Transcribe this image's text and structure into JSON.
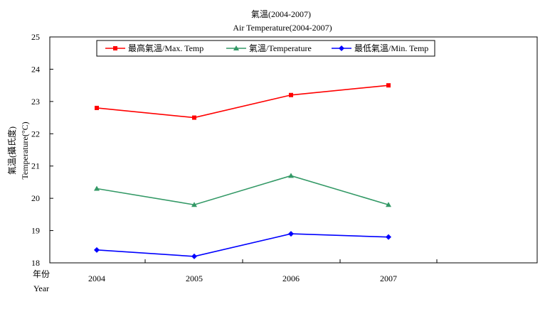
{
  "chart_data": {
    "type": "line",
    "title": "氣溫(2004-2007)",
    "subtitle": "Air Temperature(2004-2007)",
    "ylabel_line1": "氣溫(攝氏度)",
    "ylabel_line2": "Temperature(°C)",
    "xlabel_line1": "年份",
    "xlabel_line2": "Year",
    "categories": [
      "2004",
      "2005",
      "2006",
      "2007"
    ],
    "ylim": [
      18,
      25
    ],
    "yticks": [
      "18",
      "19",
      "20",
      "21",
      "22",
      "23",
      "24",
      "25"
    ],
    "grid": false,
    "legend_position": "top",
    "series": [
      {
        "name": "最高氣溫/Max. Temp",
        "color": "#ff0000",
        "marker": "square",
        "values": [
          22.8,
          22.5,
          23.2,
          23.5
        ]
      },
      {
        "name": "氣溫/Temperature",
        "color": "#339966",
        "marker": "triangle",
        "values": [
          20.3,
          19.8,
          20.7,
          19.8
        ]
      },
      {
        "name": "最低氣溫/Min. Temp",
        "color": "#0000ff",
        "marker": "diamond",
        "values": [
          18.4,
          18.2,
          18.9,
          18.8
        ]
      }
    ]
  }
}
